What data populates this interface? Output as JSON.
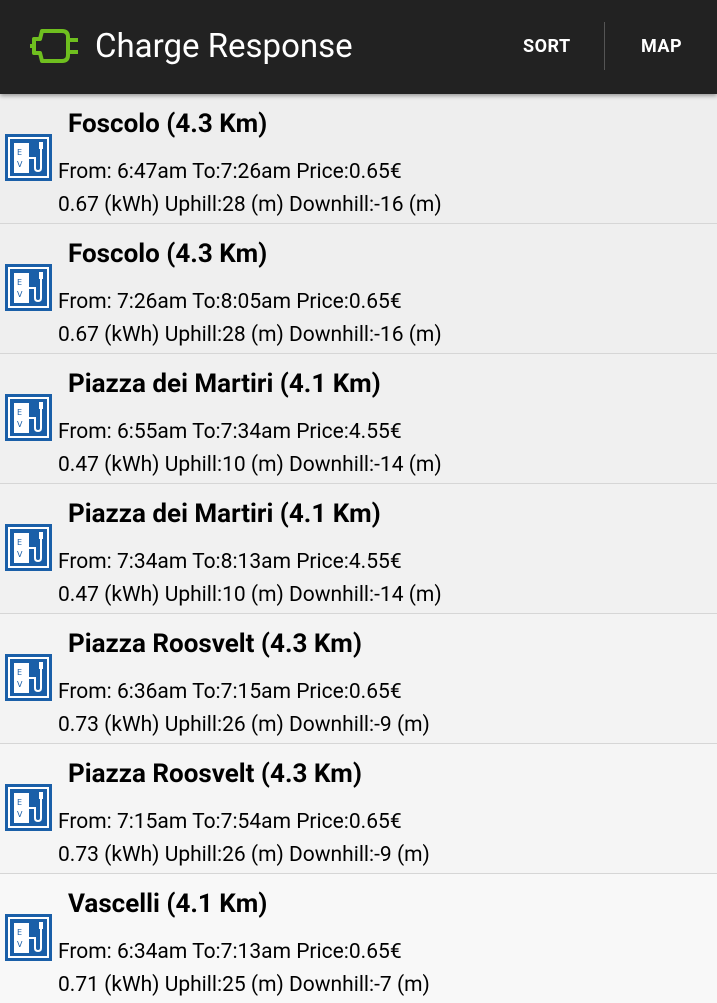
{
  "actionbar": {
    "title": "Charge Response",
    "sort_label": "SORT",
    "map_label": "MAP",
    "icon": "plug-icon",
    "icon_color": "#6fbf1f"
  },
  "colors": {
    "actionbar_bg": "#222222",
    "list_bg": "#f4f4f4",
    "ev_icon_blue": "#1a5fa8"
  },
  "stations": [
    {
      "title": "Foscolo (4.3 Km)",
      "line1": "From: 6:47am To:7:26am Price:0.65€",
      "line2": "0.67 (kWh) Uphill:28 (m) Downhill:-16 (m)"
    },
    {
      "title": "Foscolo (4.3 Km)",
      "line1": "From: 7:26am To:8:05am Price:0.65€",
      "line2": "0.67 (kWh) Uphill:28 (m) Downhill:-16 (m)"
    },
    {
      "title": "Piazza dei Martiri (4.1 Km)",
      "line1": "From: 6:55am To:7:34am Price:4.55€",
      "line2": "0.47 (kWh) Uphill:10 (m) Downhill:-14 (m)"
    },
    {
      "title": "Piazza dei Martiri (4.1 Km)",
      "line1": "From: 7:34am To:8:13am Price:4.55€",
      "line2": "0.47 (kWh) Uphill:10 (m) Downhill:-14 (m)"
    },
    {
      "title": "Piazza Roosvelt (4.3 Km)",
      "line1": "From: 6:36am To:7:15am Price:0.65€",
      "line2": "0.73 (kWh) Uphill:26 (m) Downhill:-9 (m)"
    },
    {
      "title": "Piazza Roosvelt (4.3 Km)",
      "line1": "From: 7:15am To:7:54am Price:0.65€",
      "line2": "0.73 (kWh) Uphill:26 (m) Downhill:-9 (m)"
    },
    {
      "title": "Vascelli (4.1 Km)",
      "line1": "From: 6:34am To:7:13am Price:0.65€",
      "line2": "0.71 (kWh) Uphill:25 (m) Downhill:-7 (m)"
    }
  ]
}
